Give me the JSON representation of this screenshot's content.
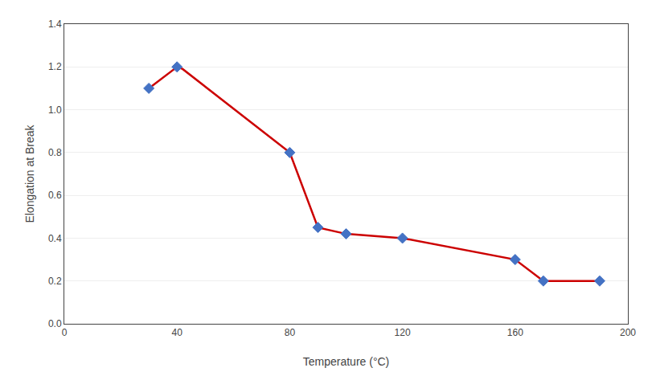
{
  "chart_data": {
    "type": "line",
    "xlabel": "Temperature (°C)",
    "ylabel": "Elongation at Break",
    "series": [
      {
        "type": "line",
        "line_style": "solid",
        "color": "#CC0000",
        "x": [
          30,
          40,
          42,
          80,
          90,
          100,
          120,
          160,
          170,
          190
        ],
        "values": [
          1.1,
          1.2,
          1.19,
          0.8,
          0.45,
          0.42,
          0.4,
          0.3,
          0.2,
          0.2
        ]
      },
      {
        "type": "scatter",
        "marker": "diamond",
        "color": "#4472C4",
        "x": [
          30,
          40,
          80,
          90,
          100,
          120,
          160,
          170,
          190
        ],
        "values": [
          1.1,
          1.2,
          0.8,
          0.45,
          0.42,
          0.4,
          0.3,
          0.2,
          0.2
        ]
      }
    ],
    "xlim": [
      0,
      200
    ],
    "ylim": [
      0,
      1.4
    ],
    "xticks": [
      0,
      40,
      80,
      120,
      160,
      200
    ],
    "yticks": [
      {
        "value": 0,
        "label": "0.0"
      },
      0.2,
      0.4,
      0.6,
      0.8,
      {
        "value": 1.0,
        "label": "1.0"
      },
      1.2,
      1.4
    ],
    "grid": "y"
  }
}
